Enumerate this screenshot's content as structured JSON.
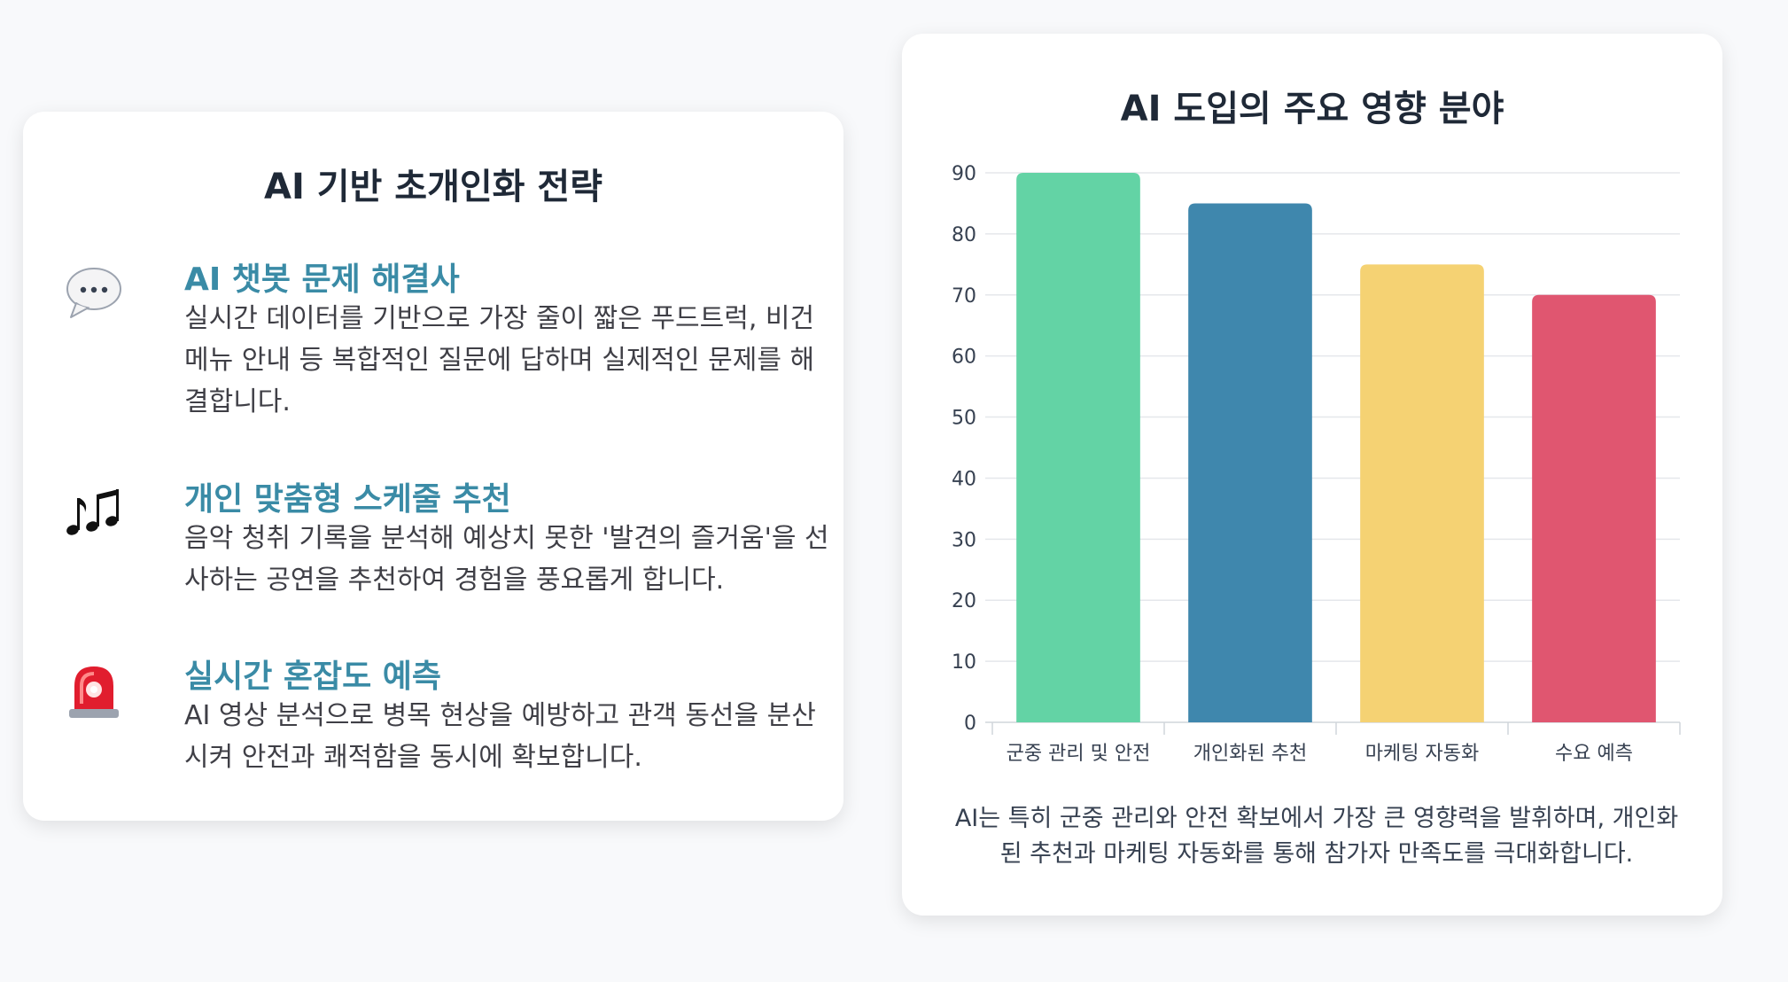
{
  "left_panel": {
    "title": "AI 기반 초개인화 전략",
    "items": [
      {
        "icon": "speech-bubble-icon",
        "title": "AI 챗봇 문제 해결사",
        "description": "실시간 데이터를 기반으로 가장 줄이 짧은 푸드트럭, 비건 메뉴 안내 등 복합적인 질문에 답하며 실제적인 문제를 해결합니다."
      },
      {
        "icon": "music-notes-icon",
        "title": "개인 맞춤형 스케줄 추천",
        "description": "음악 청취 기록을 분석해 예상치 못한 '발견의 즐거움'을 선사하는 공연을 추천하여 경험을 풍요롭게 합니다."
      },
      {
        "icon": "siren-icon",
        "title": "실시간 혼잡도 예측",
        "description": "AI 영상 분석으로 병목 현상을 예방하고 관객 동선을 분산시켜 안전과 쾌적함을 동시에 확보합니다."
      }
    ]
  },
  "right_panel": {
    "caption": "AI는 특히 군중 관리와 안전 확보에서 가장 큰 영향력을 발휘하며, 개인화된 추천과 마케팅 자동화를 통해 참가자 만족도를 극대화합니다."
  },
  "chart_data": {
    "type": "bar",
    "title": "AI 도입의 주요 영향 분야",
    "categories": [
      "군중 관리 및 안전",
      "개인화된 추천",
      "마케팅 자동화",
      "수요 예측"
    ],
    "values": [
      90,
      85,
      75,
      70
    ],
    "colors": [
      "#63d3a5",
      "#3f87ad",
      "#f5d273",
      "#e05670"
    ],
    "ylim": [
      0,
      90
    ],
    "yticks": [
      0,
      10,
      20,
      30,
      40,
      50,
      60,
      70,
      80,
      90
    ],
    "xlabel": "",
    "ylabel": "",
    "grid": true,
    "legend": false
  }
}
